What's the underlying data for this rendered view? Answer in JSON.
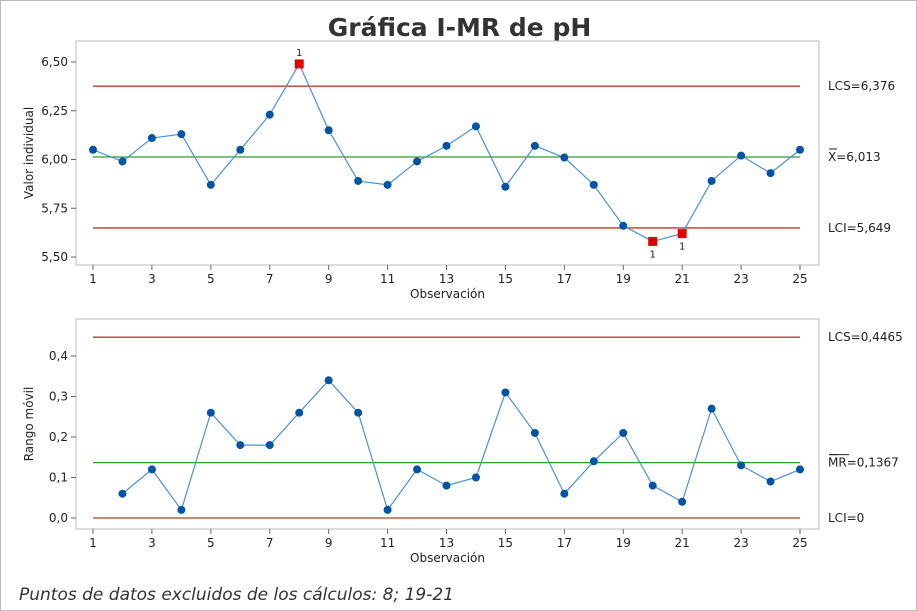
{
  "colors": {
    "data": "#0054a6",
    "line": "#4a90d9",
    "ucl": "#c0392b",
    "center": "#2e9b3a",
    "flag": "#e00000"
  },
  "title": "Gráfica I-MR de pH",
  "footer": "Puntos de datos excluidos de los cálculos: 8; 19-21",
  "chart_data": [
    {
      "type": "line",
      "name": "I chart",
      "xlabel": "Observación",
      "ylabel": "Valor individual",
      "x": [
        1,
        2,
        3,
        4,
        5,
        6,
        7,
        8,
        9,
        10,
        11,
        12,
        13,
        14,
        15,
        16,
        17,
        18,
        19,
        20,
        21,
        22,
        23,
        24,
        25
      ],
      "values": [
        6.05,
        5.99,
        6.11,
        6.13,
        5.87,
        6.05,
        6.23,
        6.49,
        6.15,
        5.89,
        5.87,
        5.99,
        6.07,
        6.17,
        5.86,
        6.07,
        6.01,
        5.87,
        5.66,
        5.58,
        5.62,
        5.89,
        6.02,
        5.93,
        6.05
      ],
      "flagged": [
        8,
        20,
        21
      ],
      "flag_label": "1",
      "ylim": [
        5.5,
        6.5
      ],
      "yticks": [
        5.5,
        5.75,
        6.0,
        6.25,
        6.5
      ],
      "ytick_labels": [
        "5,50",
        "5,75",
        "6,00",
        "6,25",
        "6,50"
      ],
      "xticks": [
        1,
        3,
        5,
        7,
        9,
        11,
        13,
        15,
        17,
        19,
        21,
        23,
        25
      ],
      "ucl": 6.376,
      "center": 6.013,
      "lcl": 5.649,
      "ucl_label": "LCS=6,376",
      "center_label": "X=6,013",
      "lcl_label": "LCI=5,649"
    },
    {
      "type": "line",
      "name": "MR chart",
      "xlabel": "Observación",
      "ylabel": "Rango móvil",
      "x": [
        2,
        3,
        4,
        5,
        6,
        7,
        8,
        9,
        10,
        11,
        12,
        13,
        14,
        15,
        16,
        17,
        18,
        19,
        20,
        21,
        22,
        23,
        24,
        25
      ],
      "values": [
        0.06,
        0.12,
        0.02,
        0.26,
        0.18,
        0.18,
        0.26,
        0.34,
        0.26,
        0.02,
        0.12,
        0.08,
        0.1,
        0.31,
        0.21,
        0.06,
        0.14,
        0.21,
        0.08,
        0.04,
        0.27,
        0.13,
        0.09,
        0.12
      ],
      "flagged": [],
      "flag_label": "1",
      "ylim": [
        0,
        0.4
      ],
      "yticks": [
        0,
        0.1,
        0.2,
        0.3,
        0.4
      ],
      "ytick_labels": [
        "0,0",
        "0,1",
        "0,2",
        "0,3",
        "0,4"
      ],
      "xticks": [
        1,
        3,
        5,
        7,
        9,
        11,
        13,
        15,
        17,
        19,
        21,
        23,
        25
      ],
      "ucl": 0.4465,
      "center": 0.1367,
      "lcl": 0,
      "ucl_label": "LCS=0,4465",
      "center_label": "MR=0,1367",
      "lcl_label": "LCI=0"
    }
  ]
}
